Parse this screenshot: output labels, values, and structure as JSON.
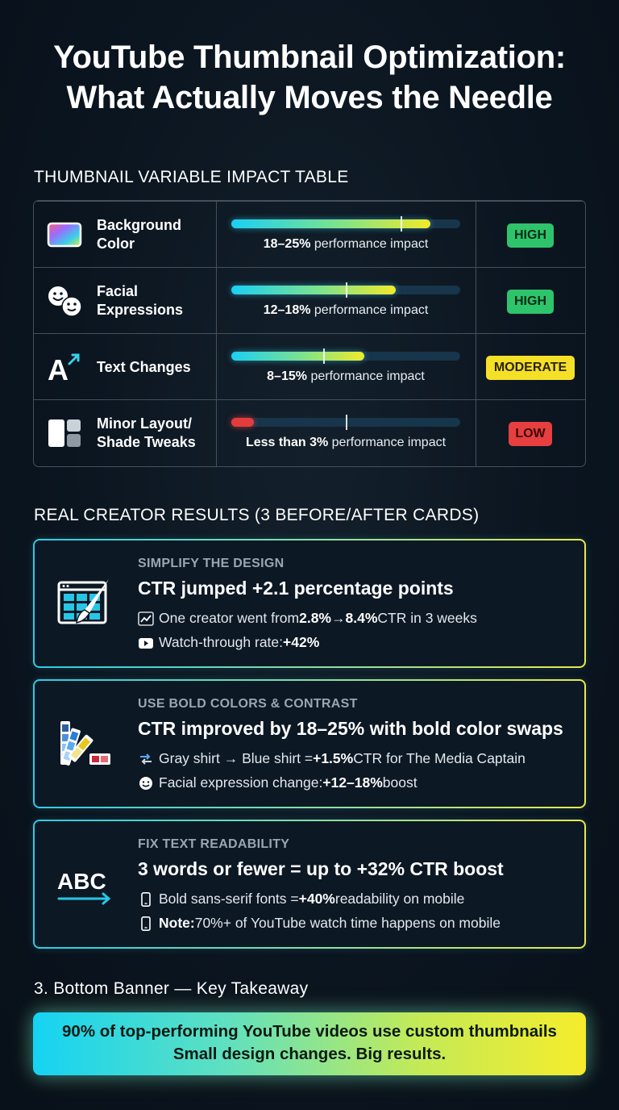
{
  "title": {
    "line1": "YouTube Thumbnail Optimization:",
    "line2": "What Actually Moves the Needle"
  },
  "impact_table": {
    "heading": "THUMBNAIL VARIABLE IMPACT TABLE",
    "rows": [
      {
        "icon": "color-swatch-icon",
        "label_line1": "Background",
        "label_line2": "Color",
        "range": "18–25%",
        "caption": "performance impact",
        "fill_fraction": 0.87,
        "marker_fraction": 0.74,
        "level": "HIGH"
      },
      {
        "icon": "faces-icon",
        "label_line1": "Facial",
        "label_line2": "Expressions",
        "range": "12–18%",
        "caption": "performance impact",
        "fill_fraction": 0.72,
        "marker_fraction": 0.5,
        "level": "HIGH"
      },
      {
        "icon": "text-arrow-icon",
        "label_line1": "Text Changes",
        "label_line2": "",
        "range": "8–15%",
        "caption": "performance impact",
        "fill_fraction": 0.58,
        "marker_fraction": 0.4,
        "level": "MODERATE"
      },
      {
        "icon": "layout-grid-icon",
        "label_line1": "Minor Layout/",
        "label_line2": "Shade Tweaks",
        "range": "Less than 3%",
        "caption": "performance impact",
        "fill_fraction": 0.1,
        "marker_fraction": 0.5,
        "level": "LOW"
      }
    ],
    "colors": {
      "high": "#2ec46b",
      "moderate": "#f5e028",
      "low": "#e73f3f"
    }
  },
  "results": {
    "heading": "REAL CREATOR RESULTS (3 BEFORE/AFTER CARDS)",
    "cards": [
      {
        "icon": "design-brush-icon",
        "kicker": "SIMPLIFY THE DESIGN",
        "headline": "CTR jumped +2.1 percentage points",
        "line1": {
          "icon": "trend-chart-icon",
          "pre": "One creator went from ",
          "b1": "2.8%",
          "mid": " → ",
          "b2": "8.4%",
          "post": " CTR in 3 weeks"
        },
        "line2": {
          "icon": "youtube-play-icon",
          "pre": "Watch-through rate: ",
          "b1": "+42%"
        }
      },
      {
        "icon": "color-fan-icon",
        "kicker": "USE BOLD COLORS & CONTRAST",
        "headline": "CTR improved by 18–25% with bold color swaps",
        "line1": {
          "icon": "swap-arrows-icon",
          "pre": "Gray shirt → Blue shirt = ",
          "b1": "+1.5%",
          "post": " CTR for The Media Captain"
        },
        "line2": {
          "icon": "smile-icon",
          "pre": "Facial expression change: ",
          "b1": "+12–18%",
          "post": " boost"
        }
      },
      {
        "icon": "abc-text-icon",
        "icon_text": "ABC",
        "kicker": "FIX TEXT READABILITY",
        "headline": "3 words or fewer = up to +32% CTR boost",
        "line1": {
          "icon": "phone-icon",
          "pre": "Bold sans-serif fonts = ",
          "b1": "+40%",
          "post": " readability on mobile"
        },
        "line2": {
          "icon": "phone-icon",
          "b1": "Note:",
          "post": " 70%+ of YouTube watch time happens on mobile"
        }
      }
    ]
  },
  "takeaway": {
    "heading": "3. Bottom Banner — Key Takeaway",
    "line1": "90% of top-performing YouTube videos use custom thumbnails",
    "line2": "Small design changes. Big results."
  }
}
